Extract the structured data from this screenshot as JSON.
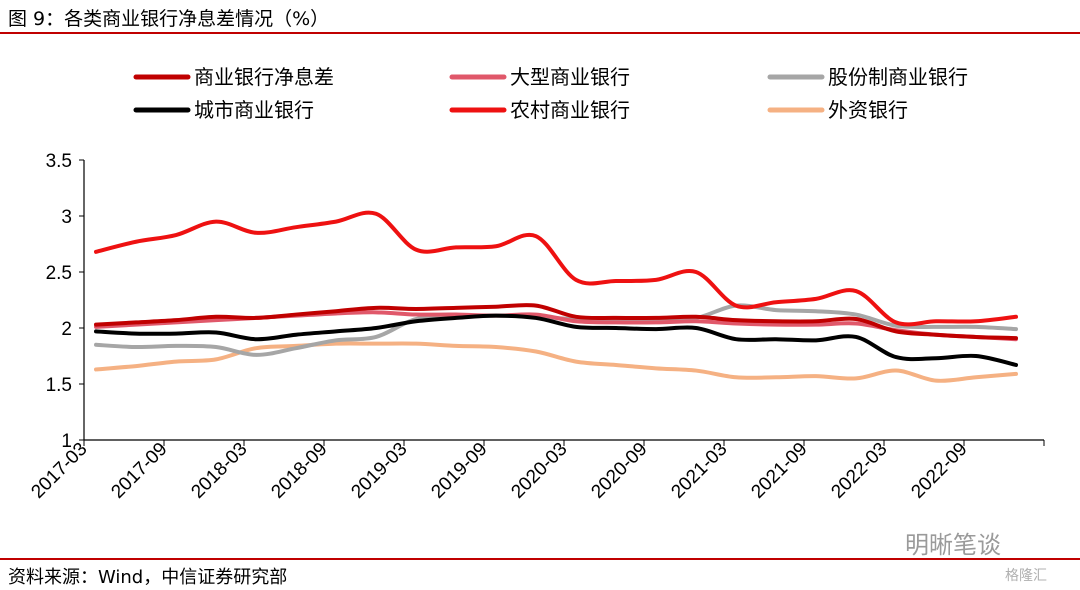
{
  "header": {
    "title": "图 9：各类商业银行净息差情况（%）"
  },
  "footer": {
    "source": "资料来源：Wind，中信证券研究部"
  },
  "watermark": {
    "main": "明晰笔谈",
    "corner": "格隆汇"
  },
  "colors": {
    "rule": "#c00000"
  },
  "chart_data": {
    "type": "line",
    "title": "",
    "xlabel": "",
    "ylabel": "",
    "ylim": [
      1,
      3.5
    ],
    "y_ticks": [
      "1",
      "1.5",
      "2",
      "2.5",
      "3",
      "3.5"
    ],
    "x": [
      "2017-03",
      "2017-06",
      "2017-09",
      "2017-12",
      "2018-03",
      "2018-06",
      "2018-09",
      "2018-12",
      "2019-03",
      "2019-06",
      "2019-09",
      "2019-12",
      "2020-03",
      "2020-06",
      "2020-09",
      "2020-12",
      "2021-03",
      "2021-06",
      "2021-09",
      "2021-12",
      "2022-03",
      "2022-06",
      "2022-09",
      "2022-12"
    ],
    "x_tick_labels": [
      "2017-03",
      "2017-09",
      "2018-03",
      "2018-09",
      "2019-03",
      "2019-09",
      "2020-03",
      "2020-09",
      "2021-03",
      "2021-09",
      "2022-03",
      "2022-09"
    ],
    "legend_position": "top",
    "grid": false,
    "series": [
      {
        "name": "商业银行净息差",
        "color": "#c00000",
        "values": [
          2.03,
          2.05,
          2.07,
          2.1,
          2.09,
          2.12,
          2.15,
          2.18,
          2.17,
          2.18,
          2.19,
          2.2,
          2.1,
          2.09,
          2.09,
          2.1,
          2.07,
          2.06,
          2.06,
          2.08,
          1.97,
          1.94,
          1.92,
          1.91
        ]
      },
      {
        "name": "大型商业银行",
        "color": "#e0586a",
        "values": [
          2.01,
          2.03,
          2.05,
          2.07,
          2.09,
          2.11,
          2.13,
          2.14,
          2.12,
          2.12,
          2.11,
          2.12,
          2.06,
          2.05,
          2.05,
          2.06,
          2.04,
          2.03,
          2.03,
          2.04,
          1.98,
          1.94,
          1.92,
          1.9
        ]
      },
      {
        "name": "股份制商业银行",
        "color": "#a6a6a6",
        "values": [
          1.85,
          1.83,
          1.84,
          1.83,
          1.76,
          1.82,
          1.89,
          1.92,
          2.08,
          2.1,
          2.11,
          2.1,
          2.08,
          2.08,
          2.08,
          2.09,
          2.2,
          2.16,
          2.15,
          2.12,
          2.02,
          2.01,
          2.01,
          1.99
        ]
      },
      {
        "name": "城市商业银行",
        "color": "#000000",
        "values": [
          1.97,
          1.95,
          1.95,
          1.96,
          1.9,
          1.94,
          1.97,
          2.0,
          2.06,
          2.09,
          2.11,
          2.09,
          2.01,
          2.0,
          1.99,
          2.0,
          1.9,
          1.9,
          1.89,
          1.92,
          1.74,
          1.73,
          1.75,
          1.67
        ]
      },
      {
        "name": "农村商业银行",
        "color": "#ee1111",
        "values": [
          2.68,
          2.77,
          2.83,
          2.95,
          2.85,
          2.9,
          2.95,
          3.02,
          2.7,
          2.72,
          2.73,
          2.82,
          2.43,
          2.42,
          2.43,
          2.5,
          2.2,
          2.23,
          2.26,
          2.33,
          2.05,
          2.06,
          2.06,
          2.1
        ]
      },
      {
        "name": "外资银行",
        "color": "#f5b183",
        "values": [
          1.63,
          1.66,
          1.7,
          1.72,
          1.82,
          1.84,
          1.86,
          1.86,
          1.86,
          1.84,
          1.83,
          1.79,
          1.7,
          1.67,
          1.64,
          1.62,
          1.56,
          1.56,
          1.57,
          1.55,
          1.62,
          1.53,
          1.56,
          1.59
        ]
      }
    ]
  }
}
